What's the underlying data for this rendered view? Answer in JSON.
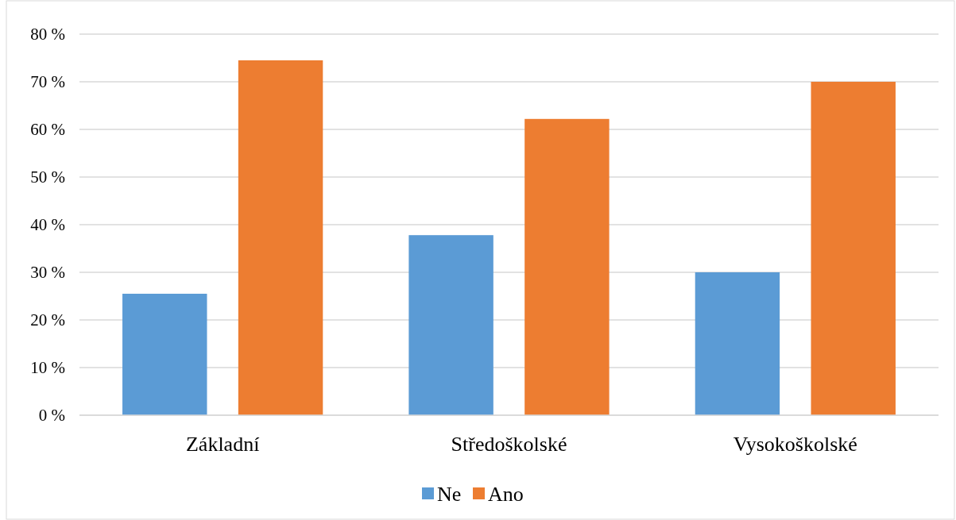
{
  "chart_data": {
    "type": "bar",
    "categories": [
      "Základní",
      "Středoškolské",
      "Vysokoškolské"
    ],
    "series": [
      {
        "name": "Ne",
        "color": "#5b9bd5",
        "values": [
          25.5,
          37.8,
          30.0
        ]
      },
      {
        "name": "Ano",
        "color": "#ed7d31",
        "values": [
          74.5,
          62.2,
          70.0
        ]
      }
    ],
    "ylim": [
      0,
      80
    ],
    "yticks": [
      {
        "value": 0,
        "label": "0 %"
      },
      {
        "value": 10,
        "label": "10 %"
      },
      {
        "value": 20,
        "label": "20 %"
      },
      {
        "value": 30,
        "label": "30 %"
      },
      {
        "value": 40,
        "label": "40 %"
      },
      {
        "value": 50,
        "label": "50 %"
      },
      {
        "value": 60,
        "label": "60 %"
      },
      {
        "value": 70,
        "label": "70 %"
      },
      {
        "value": 80,
        "label": "80 %"
      }
    ],
    "grid": "y",
    "legend": "bottom"
  }
}
